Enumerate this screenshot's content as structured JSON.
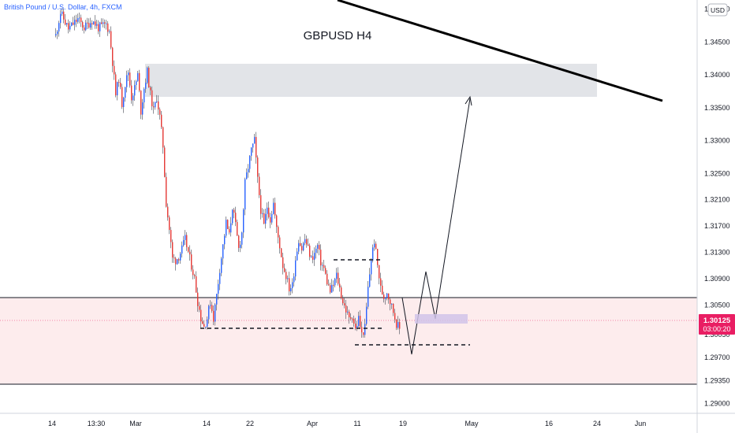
{
  "header": {
    "symbol": "British Pound / U.S. Dollar, 4h, FXCM"
  },
  "currency_button": "USD",
  "price_label": {
    "value": "1.30125",
    "countdown": "03:00:20"
  },
  "chart_data": {
    "type": "candlestick",
    "title": "GBPUSD H4",
    "ylim": [
      1.2885,
      1.3508
    ],
    "y_ticks": [
      1.29,
      1.2935,
      1.297,
      1.3005,
      1.30125,
      1.305,
      1.309,
      1.313,
      1.317,
      1.321,
      1.325,
      1.33,
      1.335,
      1.34,
      1.345,
      1.35
    ],
    "y_tick_labels": [
      "1.29000",
      "1.29350",
      "1.29700",
      "1.30050",
      "1.30125",
      "1.30500",
      "1.30900",
      "1.31300",
      "1.31700",
      "1.32100",
      "1.32500",
      "1.33000",
      "1.33500",
      "1.34000",
      "1.34500",
      "1.35000"
    ],
    "x_labels": [
      "14",
      "13:30",
      "Mar",
      "14",
      "22",
      "Apr",
      "11",
      "19",
      "May",
      "16",
      "24",
      "Jun"
    ],
    "colors": {
      "up": "#2962ff",
      "down": "#e53935",
      "wick": "#5d606b",
      "zone_fill": "#fdeced",
      "supply_fill": "#dfe1e5",
      "target_fill": "#d1c4e9",
      "price": "#e91e63"
    },
    "price_path": [
      [
        0,
        1.346
      ],
      [
        3,
        1.3495
      ],
      [
        8,
        1.347
      ],
      [
        14,
        1.3485
      ],
      [
        18,
        1.3472
      ],
      [
        23,
        1.3483
      ],
      [
        27,
        1.3472
      ],
      [
        32,
        1.3477
      ],
      [
        34,
        1.3466
      ],
      [
        36,
        1.342
      ],
      [
        38,
        1.337
      ],
      [
        40,
        1.3395
      ],
      [
        42,
        1.3356
      ],
      [
        44,
        1.3386
      ],
      [
        46,
        1.3405
      ],
      [
        48,
        1.3366
      ],
      [
        50,
        1.338
      ],
      [
        52,
        1.34
      ],
      [
        54,
        1.3345
      ],
      [
        56,
        1.338
      ],
      [
        58,
        1.3405
      ],
      [
        60,
        1.337
      ],
      [
        62,
        1.3345
      ],
      [
        64,
        1.3366
      ],
      [
        66,
        1.3336
      ],
      [
        68,
        1.3292
      ],
      [
        70,
        1.3205
      ],
      [
        72,
        1.3165
      ],
      [
        74,
        1.312
      ],
      [
        76,
        1.3118
      ],
      [
        78,
        1.3124
      ],
      [
        80,
        1.3135
      ],
      [
        82,
        1.315
      ],
      [
        84,
        1.313
      ],
      [
        86,
        1.311
      ],
      [
        88,
        1.309
      ],
      [
        90,
        1.3055
      ],
      [
        92,
        1.303
      ],
      [
        94,
        1.3017
      ],
      [
        96,
        1.303
      ],
      [
        98,
        1.3055
      ],
      [
        100,
        1.303
      ],
      [
        102,
        1.3065
      ],
      [
        104,
        1.3105
      ],
      [
        106,
        1.314
      ],
      [
        108,
        1.3175
      ],
      [
        110,
        1.3155
      ],
      [
        112,
        1.32
      ],
      [
        114,
        1.317
      ],
      [
        116,
        1.3135
      ],
      [
        118,
        1.316
      ],
      [
        120,
        1.3235
      ],
      [
        122,
        1.326
      ],
      [
        124,
        1.3285
      ],
      [
        126,
        1.33
      ],
      [
        128,
        1.324
      ],
      [
        130,
        1.3195
      ],
      [
        132,
        1.317
      ],
      [
        134,
        1.32
      ],
      [
        136,
        1.318
      ],
      [
        138,
        1.3205
      ],
      [
        140,
        1.3165
      ],
      [
        142,
        1.314
      ],
      [
        144,
        1.311
      ],
      [
        146,
        1.3095
      ],
      [
        148,
        1.3075
      ],
      [
        150,
        1.308
      ],
      [
        152,
        1.312
      ],
      [
        154,
        1.315
      ],
      [
        156,
        1.3135
      ],
      [
        158,
        1.315
      ],
      [
        160,
        1.3135
      ],
      [
        162,
        1.312
      ],
      [
        164,
        1.3128
      ],
      [
        166,
        1.314
      ],
      [
        168,
        1.3115
      ],
      [
        170,
        1.3105
      ],
      [
        172,
        1.3085
      ],
      [
        174,
        1.307
      ],
      [
        176,
        1.308
      ],
      [
        178,
        1.3095
      ],
      [
        180,
        1.3075
      ],
      [
        182,
        1.3055
      ],
      [
        184,
        1.3042
      ],
      [
        186,
        1.3028
      ],
      [
        188,
        1.3035
      ],
      [
        190,
        1.3012
      ],
      [
        192,
        1.303
      ],
      [
        194,
        1.3005
      ],
      [
        196,
        1.3015
      ],
      [
        198,
        1.3075
      ],
      [
        200,
        1.312
      ],
      [
        202,
        1.3148
      ],
      [
        204,
        1.311
      ],
      [
        206,
        1.3075
      ],
      [
        208,
        1.3062
      ],
      [
        210,
        1.307
      ],
      [
        212,
        1.3055
      ],
      [
        214,
        1.304
      ],
      [
        216,
        1.3022
      ],
      [
        218,
        1.3013
      ]
    ]
  }
}
